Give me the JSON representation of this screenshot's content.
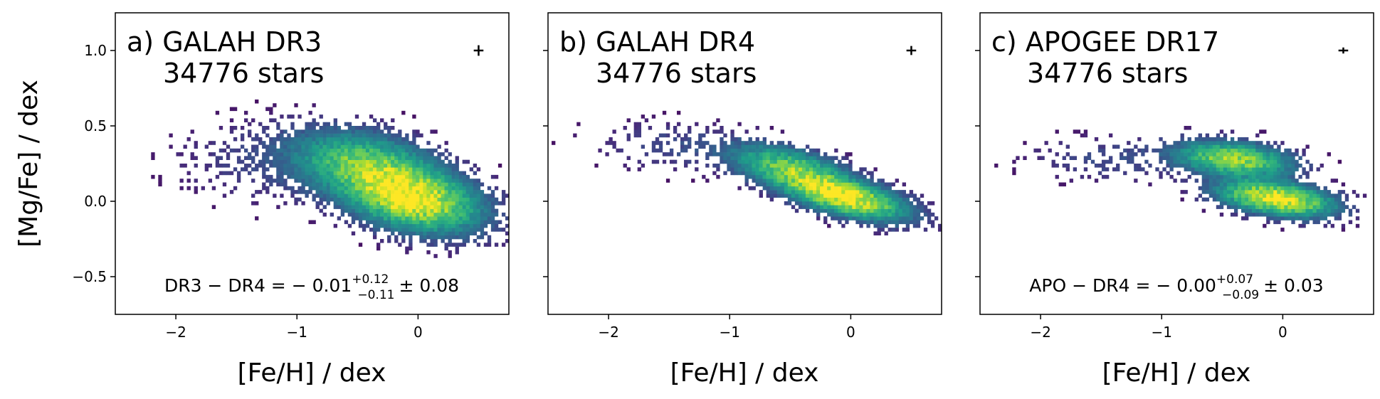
{
  "chart_data": [
    {
      "type": "heatmap",
      "title_line1": "a) GALAH DR3",
      "title_line2": "34776 stars",
      "xlabel": "[Fe/H] / dex",
      "ylabel": "[Mg/Fe] / dex",
      "xlim": [
        -2.5,
        0.75
      ],
      "ylim": [
        -0.75,
        1.25
      ],
      "xticks": [
        -2,
        -1,
        0
      ],
      "yticks": [
        -0.5,
        0.0,
        0.5,
        1.0
      ],
      "xtick_labels": [
        "−2",
        "−1",
        "0"
      ],
      "ytick_labels": [
        "−0.5",
        "0.0",
        "0.5",
        "1.0"
      ],
      "error_cross": {
        "x": 0.5,
        "y": 1.0,
        "dx": 0.04,
        "dy": 0.035
      },
      "annotation": {
        "prefix": "DR3 − DR4 = − 0.01",
        "sup": "+0.12",
        "sub": "−0.11",
        "suffix": "± 0.08"
      },
      "density_clusters": [
        {
          "x": -0.05,
          "y": 0.02,
          "sx": 0.33,
          "sy": 0.13,
          "rho": -0.35,
          "w": 1.0
        },
        {
          "x": -0.45,
          "y": 0.25,
          "sx": 0.35,
          "sy": 0.13,
          "rho": -0.3,
          "w": 0.55
        },
        {
          "x": -1.2,
          "y": 0.25,
          "sx": 0.5,
          "sy": 0.17,
          "rho": -0.1,
          "w": 0.06
        }
      ]
    },
    {
      "type": "heatmap",
      "title_line1": "b) GALAH DR4",
      "title_line2": "34776 stars",
      "xlabel": "[Fe/H] / dex",
      "ylabel": "",
      "xlim": [
        -2.5,
        0.75
      ],
      "ylim": [
        -0.75,
        1.25
      ],
      "xticks": [
        -2,
        -1,
        0
      ],
      "yticks": [
        -0.5,
        0.0,
        0.5,
        1.0
      ],
      "xtick_labels": [
        "−2",
        "−1",
        "0"
      ],
      "ytick_labels": [
        "",
        "",
        "",
        ""
      ],
      "error_cross": {
        "x": 0.5,
        "y": 1.0,
        "dx": 0.04,
        "dy": 0.03
      },
      "annotation": null,
      "density_clusters": [
        {
          "x": -0.05,
          "y": 0.03,
          "sx": 0.3,
          "sy": 0.09,
          "rho": -0.6,
          "w": 1.0
        },
        {
          "x": -0.5,
          "y": 0.22,
          "sx": 0.28,
          "sy": 0.09,
          "rho": -0.5,
          "w": 0.6
        },
        {
          "x": -1.4,
          "y": 0.36,
          "sx": 0.45,
          "sy": 0.1,
          "rho": -0.2,
          "w": 0.07
        }
      ]
    },
    {
      "type": "heatmap",
      "title_line1": "c) APOGEE DR17",
      "title_line2": "34776 stars",
      "xlabel": "[Fe/H] / dex",
      "ylabel": "",
      "xlim": [
        -2.5,
        0.75
      ],
      "ylim": [
        -0.75,
        1.25
      ],
      "xticks": [
        -2,
        -1,
        0
      ],
      "yticks": [
        -0.5,
        0.0,
        0.5,
        1.0
      ],
      "xtick_labels": [
        "−2",
        "−1",
        "0"
      ],
      "ytick_labels": [
        "",
        "",
        "",
        ""
      ],
      "error_cross": {
        "x": 0.5,
        "y": 1.0,
        "dx": 0.04,
        "dy": 0.02
      },
      "annotation": {
        "prefix": "APO − DR4 = − 0.00",
        "sup": "+0.07",
        "sub": "−0.09",
        "suffix": "± 0.03"
      },
      "density_clusters": [
        {
          "x": -0.05,
          "y": 0.02,
          "sx": 0.28,
          "sy": 0.07,
          "rho": -0.4,
          "w": 1.0
        },
        {
          "x": -0.4,
          "y": 0.28,
          "sx": 0.28,
          "sy": 0.07,
          "rho": -0.3,
          "w": 0.75
        },
        {
          "x": -1.4,
          "y": 0.28,
          "sx": 0.45,
          "sy": 0.09,
          "rho": -0.1,
          "w": 0.07
        }
      ]
    }
  ]
}
